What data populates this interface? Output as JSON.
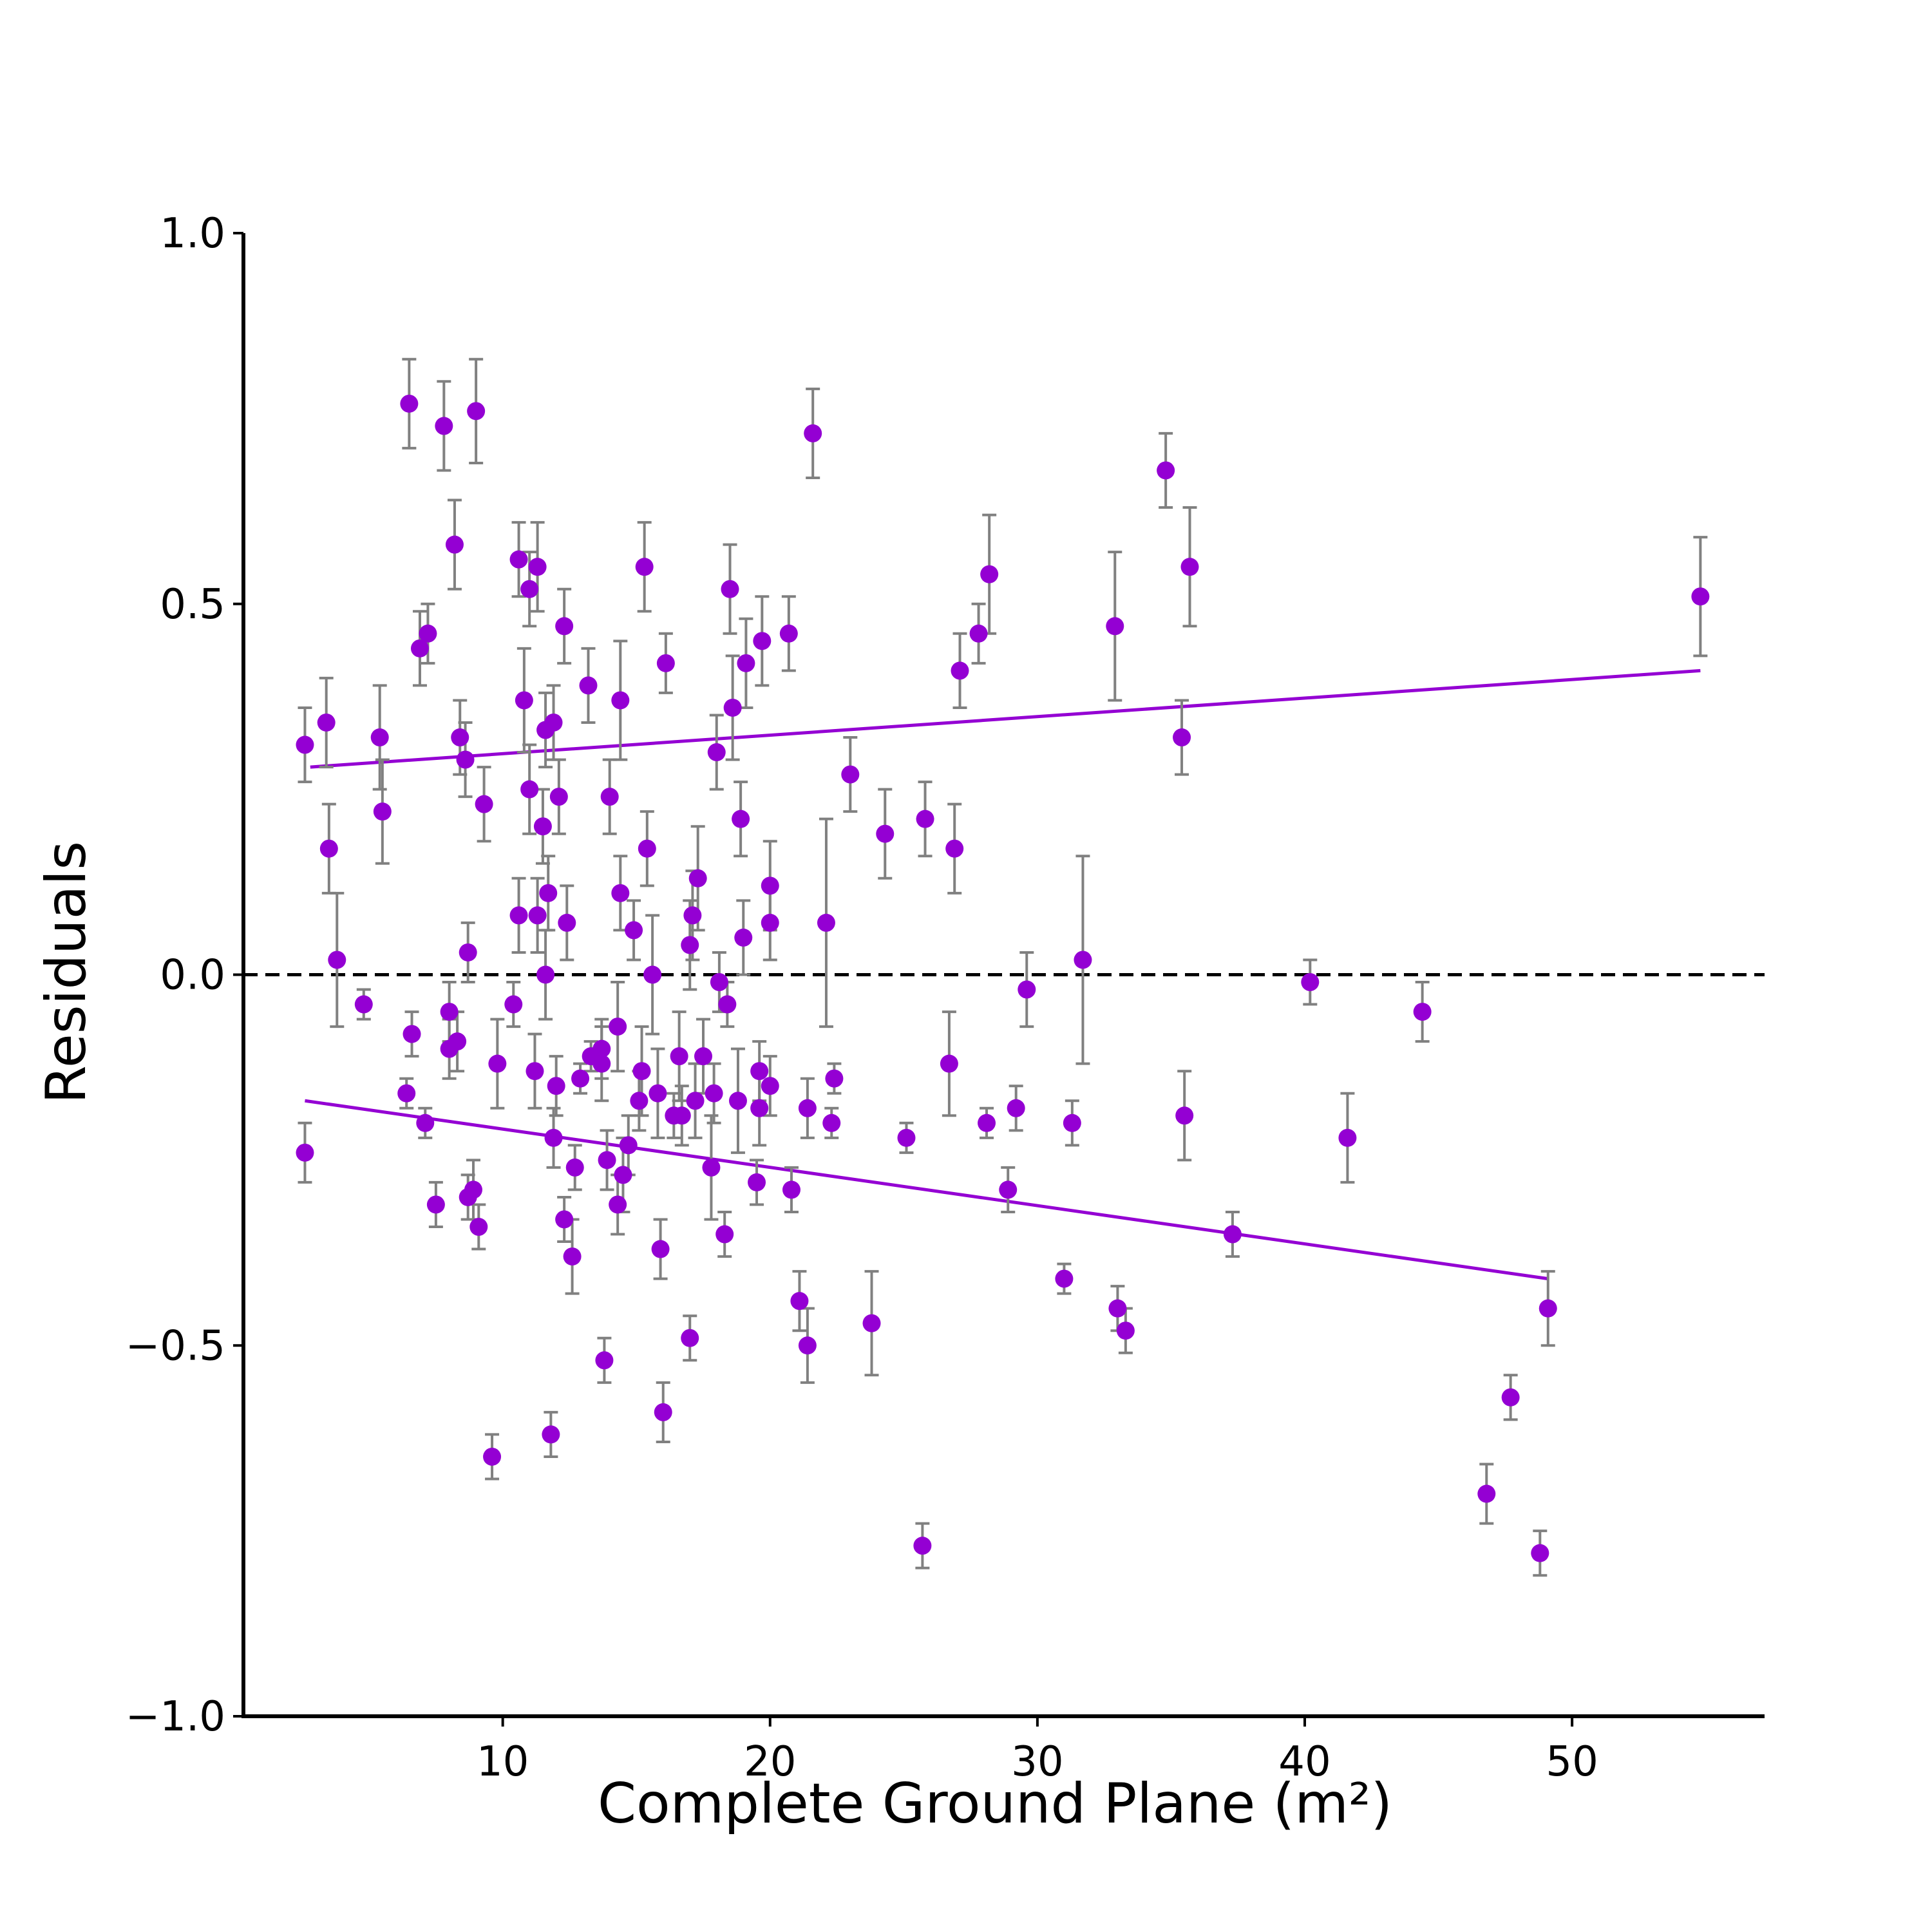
{
  "chart_data": {
    "type": "scatter",
    "title": "",
    "xlabel": "Complete Ground Plane (m²)",
    "ylabel": "Residuals",
    "xlim": [
      0.3,
      57.2
    ],
    "ylim": [
      -1.0,
      1.0
    ],
    "xticks": [
      10,
      20,
      30,
      40,
      50
    ],
    "yticks": [
      -1.0,
      -0.5,
      0.0,
      0.5,
      1.0
    ],
    "ytick_labels": [
      "−1.0",
      "−0.5",
      "0.0",
      "0.5",
      "1.0"
    ],
    "grid": false,
    "legend": "none",
    "colors": {
      "points": "#9400D3",
      "trend_lines": "#9400D3",
      "error_bars": "#808080",
      "zero_line": "#000000"
    },
    "reference_line": {
      "y": 0.0,
      "style": "dashed"
    },
    "trend_lines": [
      {
        "x": [
          2.8,
          54.8
        ],
        "y": [
          0.28,
          0.41
        ]
      },
      {
        "x": [
          2.6,
          49.1
        ],
        "y": [
          -0.17,
          -0.41
        ]
      }
    ],
    "points": [
      {
        "x": 2.6,
        "y": 0.31,
        "err": 0.05
      },
      {
        "x": 2.6,
        "y": -0.24,
        "err": 0.04
      },
      {
        "x": 3.4,
        "y": 0.34,
        "err": 0.06
      },
      {
        "x": 3.5,
        "y": 0.17,
        "err": 0.06
      },
      {
        "x": 3.8,
        "y": 0.02,
        "err": 0.09
      },
      {
        "x": 4.8,
        "y": -0.04,
        "err": 0.02
      },
      {
        "x": 5.4,
        "y": 0.32,
        "err": 0.07
      },
      {
        "x": 5.5,
        "y": 0.22,
        "err": 0.07
      },
      {
        "x": 6.4,
        "y": -0.16,
        "err": 0.02
      },
      {
        "x": 6.5,
        "y": 0.77,
        "err": 0.06
      },
      {
        "x": 6.6,
        "y": -0.08,
        "err": 0.03
      },
      {
        "x": 6.9,
        "y": 0.44,
        "err": 0.05
      },
      {
        "x": 7.1,
        "y": -0.2,
        "err": 0.02
      },
      {
        "x": 7.2,
        "y": 0.46,
        "err": 0.04
      },
      {
        "x": 7.5,
        "y": -0.31,
        "err": 0.03
      },
      {
        "x": 7.8,
        "y": 0.74,
        "err": 0.06
      },
      {
        "x": 8.0,
        "y": -0.05,
        "err": 0.04
      },
      {
        "x": 8.0,
        "y": -0.1,
        "err": 0.04
      },
      {
        "x": 8.2,
        "y": 0.58,
        "err": 0.06
      },
      {
        "x": 8.3,
        "y": -0.09,
        "err": 0.04
      },
      {
        "x": 8.4,
        "y": 0.32,
        "err": 0.05
      },
      {
        "x": 8.6,
        "y": 0.29,
        "err": 0.05
      },
      {
        "x": 8.7,
        "y": -0.3,
        "err": 0.03
      },
      {
        "x": 8.7,
        "y": 0.03,
        "err": 0.04
      },
      {
        "x": 8.9,
        "y": -0.29,
        "err": 0.04
      },
      {
        "x": 9.0,
        "y": 0.76,
        "err": 0.07
      },
      {
        "x": 9.1,
        "y": -0.34,
        "err": 0.03
      },
      {
        "x": 9.3,
        "y": 0.23,
        "err": 0.05
      },
      {
        "x": 9.6,
        "y": -0.65,
        "err": 0.03
      },
      {
        "x": 9.8,
        "y": -0.12,
        "err": 0.06
      },
      {
        "x": 10.4,
        "y": -0.04,
        "err": 0.03
      },
      {
        "x": 10.6,
        "y": 0.56,
        "err": 0.05
      },
      {
        "x": 10.6,
        "y": 0.08,
        "err": 0.05
      },
      {
        "x": 10.8,
        "y": 0.37,
        "err": 0.07
      },
      {
        "x": 11.0,
        "y": 0.52,
        "err": 0.05
      },
      {
        "x": 11.0,
        "y": 0.25,
        "err": 0.06
      },
      {
        "x": 11.2,
        "y": -0.13,
        "err": 0.05
      },
      {
        "x": 11.3,
        "y": 0.55,
        "err": 0.06
      },
      {
        "x": 11.3,
        "y": 0.08,
        "err": 0.05
      },
      {
        "x": 11.5,
        "y": 0.2,
        "err": 0.05
      },
      {
        "x": 11.6,
        "y": 0.33,
        "err": 0.05
      },
      {
        "x": 11.6,
        "y": 0.0,
        "err": 0.06
      },
      {
        "x": 11.7,
        "y": 0.11,
        "err": 0.05
      },
      {
        "x": 11.8,
        "y": -0.62,
        "err": 0.03
      },
      {
        "x": 11.9,
        "y": 0.34,
        "err": 0.05
      },
      {
        "x": 11.9,
        "y": -0.22,
        "err": 0.04
      },
      {
        "x": 12.0,
        "y": -0.15,
        "err": 0.04
      },
      {
        "x": 12.1,
        "y": 0.24,
        "err": 0.05
      },
      {
        "x": 12.3,
        "y": 0.47,
        "err": 0.05
      },
      {
        "x": 12.3,
        "y": -0.33,
        "err": 0.03
      },
      {
        "x": 12.4,
        "y": 0.07,
        "err": 0.05
      },
      {
        "x": 12.6,
        "y": -0.38,
        "err": 0.05
      },
      {
        "x": 12.7,
        "y": -0.26,
        "err": 0.03
      },
      {
        "x": 12.9,
        "y": -0.14,
        "err": 0.02
      },
      {
        "x": 13.2,
        "y": 0.39,
        "err": 0.05
      },
      {
        "x": 13.3,
        "y": -0.11,
        "err": 0.02
      },
      {
        "x": 13.7,
        "y": -0.1,
        "err": 0.04
      },
      {
        "x": 13.7,
        "y": -0.12,
        "err": 0.05
      },
      {
        "x": 13.8,
        "y": -0.52,
        "err": 0.03
      },
      {
        "x": 13.9,
        "y": -0.25,
        "err": 0.04
      },
      {
        "x": 14.0,
        "y": 0.24,
        "err": 0.05
      },
      {
        "x": 14.3,
        "y": -0.07,
        "err": 0.06
      },
      {
        "x": 14.3,
        "y": -0.31,
        "err": 0.04
      },
      {
        "x": 14.4,
        "y": 0.37,
        "err": 0.08
      },
      {
        "x": 14.4,
        "y": 0.11,
        "err": 0.05
      },
      {
        "x": 14.5,
        "y": -0.27,
        "err": 0.05
      },
      {
        "x": 14.7,
        "y": -0.23,
        "err": 0.04
      },
      {
        "x": 14.9,
        "y": 0.06,
        "err": 0.04
      },
      {
        "x": 15.1,
        "y": -0.17,
        "err": 0.04
      },
      {
        "x": 15.2,
        "y": -0.13,
        "err": 0.06
      },
      {
        "x": 15.3,
        "y": 0.55,
        "err": 0.06
      },
      {
        "x": 15.4,
        "y": 0.17,
        "err": 0.05
      },
      {
        "x": 15.6,
        "y": 0.0,
        "err": 0.08
      },
      {
        "x": 15.8,
        "y": -0.16,
        "err": 0.06
      },
      {
        "x": 15.9,
        "y": -0.37,
        "err": 0.04
      },
      {
        "x": 16.0,
        "y": -0.59,
        "err": 0.04
      },
      {
        "x": 16.1,
        "y": 0.42,
        "err": 0.04
      },
      {
        "x": 16.4,
        "y": -0.19,
        "err": 0.03
      },
      {
        "x": 16.6,
        "y": -0.11,
        "err": 0.06
      },
      {
        "x": 16.7,
        "y": -0.19,
        "err": 0.04
      },
      {
        "x": 17.0,
        "y": -0.49,
        "err": 0.03
      },
      {
        "x": 17.0,
        "y": 0.04,
        "err": 0.06
      },
      {
        "x": 17.1,
        "y": 0.08,
        "err": 0.06
      },
      {
        "x": 17.2,
        "y": -0.17,
        "err": 0.05
      },
      {
        "x": 17.3,
        "y": 0.13,
        "err": 0.07
      },
      {
        "x": 17.5,
        "y": -0.11,
        "err": 0.05
      },
      {
        "x": 17.8,
        "y": -0.26,
        "err": 0.07
      },
      {
        "x": 17.9,
        "y": -0.16,
        "err": 0.04
      },
      {
        "x": 18.0,
        "y": 0.3,
        "err": 0.05
      },
      {
        "x": 18.1,
        "y": -0.01,
        "err": 0.04
      },
      {
        "x": 18.3,
        "y": -0.35,
        "err": 0.03
      },
      {
        "x": 18.4,
        "y": -0.04,
        "err": 0.03
      },
      {
        "x": 18.5,
        "y": 0.52,
        "err": 0.06
      },
      {
        "x": 18.6,
        "y": 0.36,
        "err": 0.07
      },
      {
        "x": 18.8,
        "y": -0.17,
        "err": 0.07
      },
      {
        "x": 18.9,
        "y": 0.21,
        "err": 0.05
      },
      {
        "x": 19.0,
        "y": 0.05,
        "err": 0.05
      },
      {
        "x": 19.1,
        "y": 0.42,
        "err": 0.06
      },
      {
        "x": 19.5,
        "y": -0.28,
        "err": 0.03
      },
      {
        "x": 19.6,
        "y": -0.13,
        "err": 0.04
      },
      {
        "x": 19.6,
        "y": -0.18,
        "err": 0.05
      },
      {
        "x": 19.7,
        "y": 0.45,
        "err": 0.06
      },
      {
        "x": 20.0,
        "y": 0.07,
        "err": 0.05
      },
      {
        "x": 20.0,
        "y": 0.12,
        "err": 0.06
      },
      {
        "x": 20.0,
        "y": -0.15,
        "err": 0.04
      },
      {
        "x": 20.7,
        "y": 0.46,
        "err": 0.05
      },
      {
        "x": 20.8,
        "y": -0.29,
        "err": 0.03
      },
      {
        "x": 21.1,
        "y": -0.44,
        "err": 0.04
      },
      {
        "x": 21.4,
        "y": -0.18,
        "err": 0.04
      },
      {
        "x": 21.4,
        "y": -0.5,
        "err": 0.05
      },
      {
        "x": 21.6,
        "y": 0.73,
        "err": 0.06
      },
      {
        "x": 22.1,
        "y": 0.07,
        "err": 0.14
      },
      {
        "x": 22.3,
        "y": -0.2,
        "err": 0.02
      },
      {
        "x": 22.4,
        "y": -0.14,
        "err": 0.02
      },
      {
        "x": 23.0,
        "y": 0.27,
        "err": 0.05
      },
      {
        "x": 23.8,
        "y": -0.47,
        "err": 0.07
      },
      {
        "x": 24.3,
        "y": 0.19,
        "err": 0.06
      },
      {
        "x": 25.1,
        "y": -0.22,
        "err": 0.02
      },
      {
        "x": 25.7,
        "y": -0.77,
        "err": 0.03
      },
      {
        "x": 25.8,
        "y": 0.21,
        "err": 0.05
      },
      {
        "x": 26.7,
        "y": -0.12,
        "err": 0.07
      },
      {
        "x": 26.9,
        "y": 0.17,
        "err": 0.06
      },
      {
        "x": 27.1,
        "y": 0.41,
        "err": 0.05
      },
      {
        "x": 27.8,
        "y": 0.46,
        "err": 0.04
      },
      {
        "x": 28.1,
        "y": -0.2,
        "err": 0.02
      },
      {
        "x": 28.2,
        "y": 0.54,
        "err": 0.08
      },
      {
        "x": 28.9,
        "y": -0.29,
        "err": 0.03
      },
      {
        "x": 29.2,
        "y": -0.18,
        "err": 0.03
      },
      {
        "x": 29.6,
        "y": -0.02,
        "err": 0.05
      },
      {
        "x": 31.0,
        "y": -0.41,
        "err": 0.02
      },
      {
        "x": 31.3,
        "y": -0.2,
        "err": 0.03
      },
      {
        "x": 31.7,
        "y": 0.02,
        "err": 0.14
      },
      {
        "x": 32.9,
        "y": 0.47,
        "err": 0.1
      },
      {
        "x": 33.0,
        "y": -0.45,
        "err": 0.03
      },
      {
        "x": 33.3,
        "y": -0.48,
        "err": 0.03
      },
      {
        "x": 34.8,
        "y": 0.68,
        "err": 0.05
      },
      {
        "x": 35.4,
        "y": 0.32,
        "err": 0.05
      },
      {
        "x": 35.5,
        "y": -0.19,
        "err": 0.06
      },
      {
        "x": 35.7,
        "y": 0.55,
        "err": 0.08
      },
      {
        "x": 37.3,
        "y": -0.35,
        "err": 0.03
      },
      {
        "x": 40.2,
        "y": -0.01,
        "err": 0.03
      },
      {
        "x": 41.6,
        "y": -0.22,
        "err": 0.06
      },
      {
        "x": 44.4,
        "y": -0.05,
        "err": 0.04
      },
      {
        "x": 46.8,
        "y": -0.7,
        "err": 0.04
      },
      {
        "x": 47.7,
        "y": -0.57,
        "err": 0.03
      },
      {
        "x": 48.8,
        "y": -0.78,
        "err": 0.03
      },
      {
        "x": 49.1,
        "y": -0.45,
        "err": 0.05
      },
      {
        "x": 54.8,
        "y": 0.51,
        "err": 0.08
      }
    ]
  }
}
